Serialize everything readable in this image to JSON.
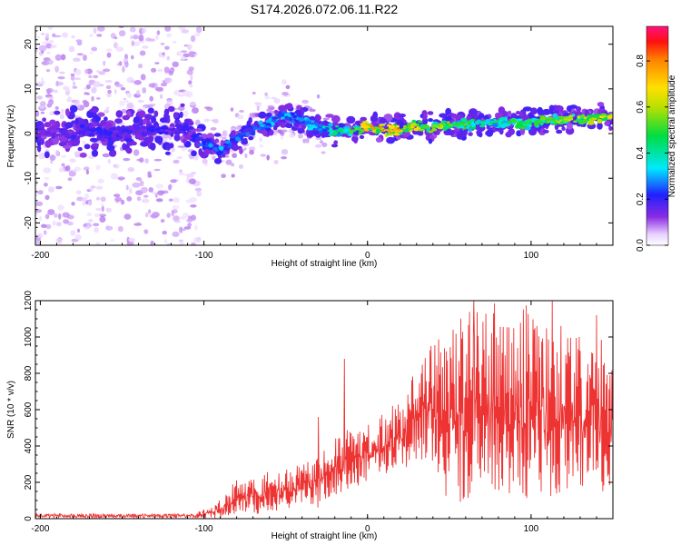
{
  "title": "S174.2026.072.06.11.R22",
  "chart_data": [
    {
      "type": "heatmap",
      "name": "spectrogram",
      "xlabel": "Height of straight line (km)",
      "ylabel": "Frequency (Hz)",
      "xlim": [
        -203,
        150
      ],
      "ylim": [
        -25,
        24
      ],
      "xticks": [
        -200,
        -100,
        0,
        100
      ],
      "yticks": [
        -20,
        -10,
        0,
        10,
        20
      ],
      "colorbar": {
        "label": "Normalized spectral amplitude",
        "range": [
          0,
          0.95
        ],
        "ticks": [
          0.0,
          0.2,
          0.4,
          0.6,
          0.8
        ],
        "tick_labels": [
          "0.0",
          "0.2",
          "0.4",
          "0.6",
          "0.8"
        ]
      },
      "ridge": {
        "x": [
          -200,
          -180,
          -160,
          -140,
          -120,
          -110,
          -100,
          -90,
          -80,
          -70,
          -60,
          -50,
          -40,
          -30,
          -20,
          -10,
          0,
          10,
          20,
          30,
          40,
          50,
          60,
          70,
          80,
          90,
          100,
          110,
          120,
          130,
          140,
          150
        ],
        "freq": [
          0,
          0.5,
          0,
          1,
          0.5,
          0,
          -2,
          -4,
          -1,
          1,
          2,
          4,
          3,
          1.5,
          0.5,
          0.5,
          1.5,
          1,
          1,
          1.5,
          1.5,
          2,
          2,
          2.5,
          2.5,
          2.5,
          2.5,
          3,
          3,
          3.5,
          3.5,
          4
        ],
        "peak_amplitude": [
          0.2,
          0.22,
          0.24,
          0.25,
          0.22,
          0.2,
          0.3,
          0.35,
          0.3,
          0.3,
          0.35,
          0.35,
          0.35,
          0.4,
          0.5,
          0.6,
          0.8,
          0.85,
          0.8,
          0.8,
          0.7,
          0.6,
          0.55,
          0.5,
          0.5,
          0.55,
          0.55,
          0.6,
          0.65,
          0.7,
          0.7,
          0.75
        ]
      }
    },
    {
      "type": "line",
      "name": "snr",
      "xlabel": "Height of straight line (km)",
      "ylabel": "SNR (10 * v/v)",
      "xlim": [
        -203,
        150
      ],
      "ylim": [
        0,
        1200
      ],
      "xticks": [
        -200,
        -100,
        0,
        100
      ],
      "yticks": [
        0,
        200,
        400,
        600,
        800,
        1000,
        1200
      ],
      "series": [
        {
          "name": "SNR",
          "color": "#ee3333",
          "envelope": {
            "x": [
              -203,
              -190,
              -170,
              -150,
              -130,
              -110,
              -100,
              -95,
              -90,
              -85,
              -80,
              -75,
              -70,
              -65,
              -60,
              -55,
              -50,
              -45,
              -40,
              -35,
              -30,
              -25,
              -20,
              -15,
              -10,
              -5,
              0,
              5,
              10,
              15,
              20,
              25,
              30,
              35,
              40,
              45,
              50,
              55,
              60,
              65,
              70,
              75,
              80,
              85,
              90,
              95,
              100,
              105,
              110,
              115,
              120,
              125,
              130,
              135,
              140,
              145,
              150
            ],
            "min": [
              0,
              0,
              0,
              0,
              0,
              0,
              0,
              0,
              0,
              10,
              10,
              20,
              30,
              20,
              40,
              40,
              40,
              60,
              80,
              80,
              60,
              100,
              120,
              150,
              160,
              180,
              200,
              220,
              220,
              250,
              260,
              280,
              300,
              280,
              240,
              160,
              100,
              80,
              100,
              60,
              100,
              120,
              60,
              80,
              100,
              60,
              80,
              100,
              100,
              120,
              140,
              150,
              150,
              160,
              140,
              150,
              150
            ],
            "max": [
              40,
              40,
              40,
              40,
              40,
              40,
              60,
              90,
              110,
              160,
              220,
              200,
              250,
              220,
              320,
              280,
              300,
              320,
              320,
              340,
              360,
              400,
              440,
              480,
              500,
              480,
              540,
              560,
              600,
              640,
              660,
              740,
              840,
              920,
              960,
              1000,
              1050,
              1100,
              1150,
              1150,
              1200,
              1180,
              1200,
              1150,
              1120,
              1200,
              1200,
              1100,
              1150,
              1200,
              1100,
              1050,
              1000,
              1000,
              1150,
              900,
              900
            ]
          },
          "spikes": [
            [
              -14,
              880
            ],
            [
              -30,
              560
            ],
            [
              65,
              1200
            ],
            [
              113,
              1200
            ],
            [
              140,
              1120
            ]
          ]
        }
      ]
    }
  ]
}
